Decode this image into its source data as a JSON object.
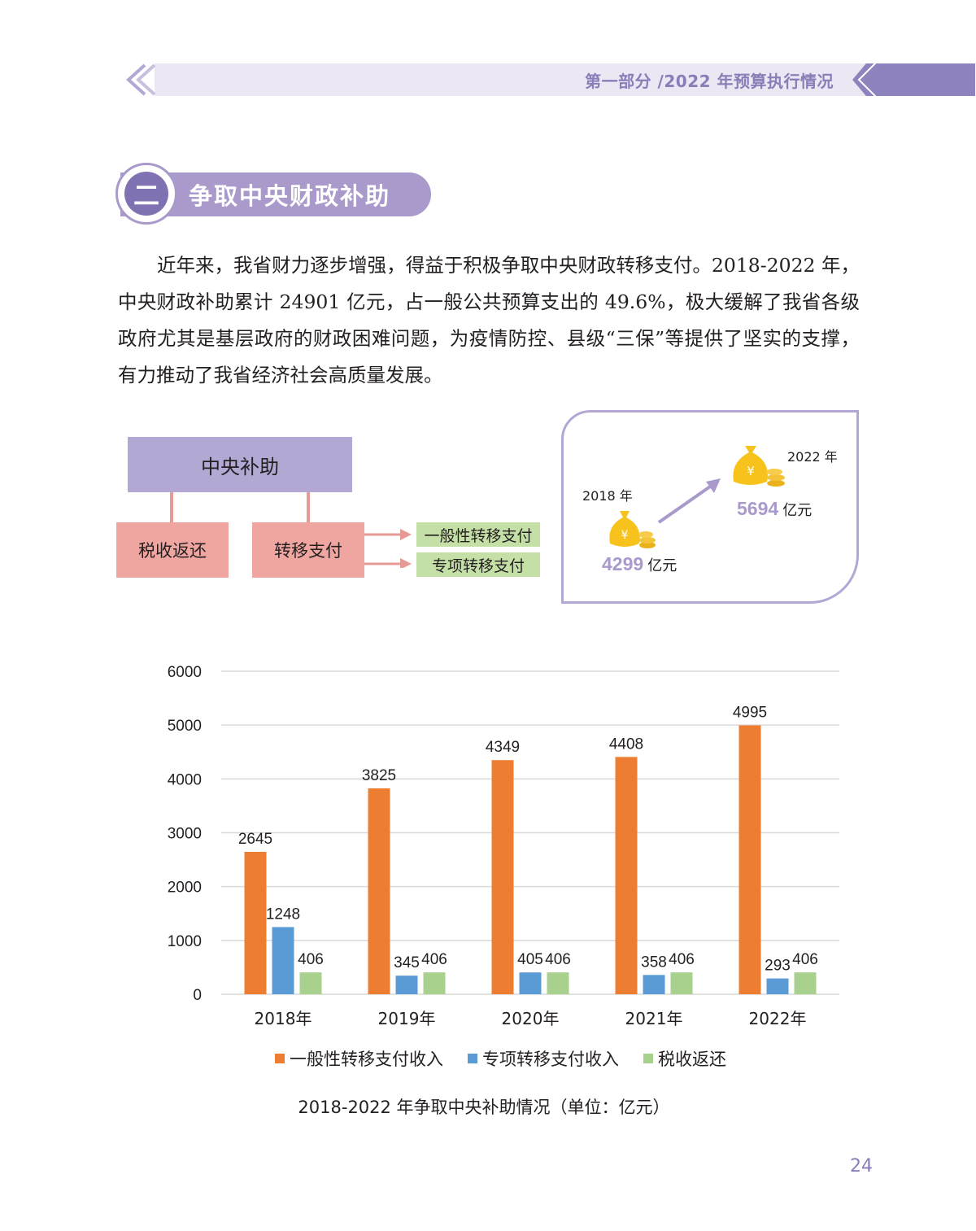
{
  "header": {
    "title": "第一部分 /2022 年预算执行情况"
  },
  "section": {
    "number": "二",
    "title": "争取中央财政补助"
  },
  "body": {
    "paragraph": "近年来，我省财力逐步增强，得益于积极争取中央财政转移支付。2018-2022 年，中央财政补助累计 24901 亿元，占一般公共预算支出的 49.6%，极大缓解了我省各级政府尤其是基层政府的财政困难问题，为疫情防控、县级“三保”等提供了坚实的支撑，有力推动了我省经济社会高质量发展。"
  },
  "diagram": {
    "top": "中央补助",
    "left": "税收返还",
    "middle": "转移支付",
    "right_items": [
      "一般性转移支付",
      "专项转移支付"
    ]
  },
  "comparison": {
    "start": {
      "year": "2018 年",
      "value": "4299",
      "unit": "亿元"
    },
    "end": {
      "year": "2022 年",
      "value": "5694",
      "unit": "亿元"
    }
  },
  "colors": {
    "accent": "#a99acb",
    "orange": "#ed7d31",
    "blue": "#5b9bd5",
    "green": "#a9d18e"
  },
  "chart_data": {
    "type": "bar",
    "categories": [
      "2018年",
      "2019年",
      "2020年",
      "2021年",
      "2022年"
    ],
    "series": [
      {
        "name": "一般性转移支付收入",
        "color": "#ed7d31",
        "values": [
          2645,
          3825,
          4349,
          4408,
          4995
        ]
      },
      {
        "name": "专项转移支付收入",
        "color": "#5b9bd5",
        "values": [
          1248,
          345,
          405,
          358,
          293
        ]
      },
      {
        "name": "税收返还",
        "color": "#a9d18e",
        "values": [
          406,
          406,
          406,
          406,
          406
        ]
      }
    ],
    "yticks": [
      "0",
      "1000",
      "2000",
      "3000",
      "4000",
      "5000",
      "6000"
    ],
    "ylim": [
      0,
      6000
    ],
    "grid": true,
    "legend": "bottom",
    "caption": "2018-2022 年争取中央补助情况（单位：亿元）"
  },
  "page": {
    "number": "24"
  }
}
